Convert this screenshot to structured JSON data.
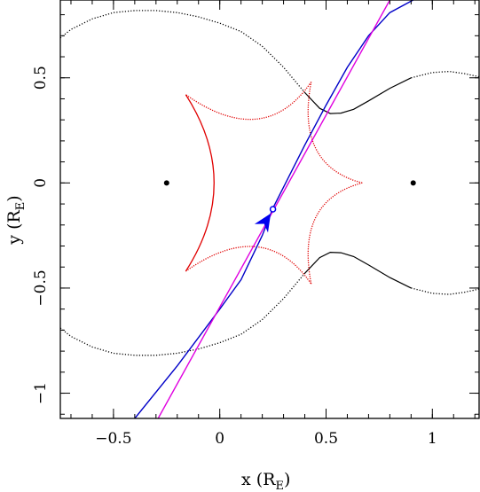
{
  "chart_data": {
    "type": "line",
    "xlabel": {
      "text": "x (R",
      "sub": "E",
      "close": ")"
    },
    "ylabel": {
      "text": "y (R",
      "sub": "E",
      "close": ")"
    },
    "xlim": [
      -0.75,
      1.22
    ],
    "ylim": [
      -1.12,
      0.87
    ],
    "x_ticks": [
      {
        "value": -0.5,
        "label": "−0.5"
      },
      {
        "value": 0,
        "label": "0"
      },
      {
        "value": 0.5,
        "label": "0.5"
      },
      {
        "value": 1,
        "label": "1"
      }
    ],
    "y_ticks": [
      {
        "value": -1,
        "label": "−1"
      },
      {
        "value": -0.5,
        "label": "−0.5"
      },
      {
        "value": 0,
        "label": "0"
      },
      {
        "value": 0.5,
        "label": "0.5"
      }
    ],
    "x_minor_step": 0.1,
    "y_minor_step": 0.1,
    "lenses": [
      {
        "x": -0.25,
        "y": 0.0
      },
      {
        "x": 0.91,
        "y": 0.0
      }
    ],
    "series": [
      {
        "color": "#000000",
        "style": "dotted-solid",
        "points_upper": [
          [
            -0.75,
            0.69
          ],
          [
            -0.7,
            0.73
          ],
          [
            -0.6,
            0.78
          ],
          [
            -0.5,
            0.81
          ],
          [
            -0.4,
            0.82
          ],
          [
            -0.3,
            0.82
          ],
          [
            -0.2,
            0.81
          ],
          [
            -0.1,
            0.79
          ],
          [
            0.0,
            0.76
          ],
          [
            0.1,
            0.72
          ],
          [
            0.2,
            0.65
          ],
          [
            0.3,
            0.55
          ],
          [
            0.4,
            0.43
          ],
          [
            0.47,
            0.355
          ],
          [
            0.52,
            0.33
          ],
          [
            0.57,
            0.332
          ],
          [
            0.63,
            0.35
          ],
          [
            0.7,
            0.39
          ],
          [
            0.8,
            0.45
          ],
          [
            0.9,
            0.5
          ],
          [
            1.0,
            0.525
          ],
          [
            1.08,
            0.53
          ],
          [
            1.15,
            0.52
          ],
          [
            1.22,
            0.505
          ]
        ]
      },
      {
        "color": "#e00000",
        "style": "dotted",
        "cusps": [
          [
            0.67,
            0.0
          ],
          [
            0.43,
            0.48
          ],
          [
            -0.16,
            0.42
          ],
          [
            -0.16,
            -0.42
          ],
          [
            0.43,
            -0.48
          ]
        ]
      },
      {
        "color": "#0000c8",
        "style": "solid",
        "points": [
          [
            -0.4,
            -1.12
          ],
          [
            -0.2,
            -0.87
          ],
          [
            0.0,
            -0.6
          ],
          [
            0.1,
            -0.46
          ],
          [
            0.2,
            -0.25
          ],
          [
            0.25,
            -0.12
          ],
          [
            0.3,
            -0.02
          ],
          [
            0.4,
            0.18
          ],
          [
            0.5,
            0.37
          ],
          [
            0.6,
            0.55
          ],
          [
            0.7,
            0.7
          ],
          [
            0.8,
            0.81
          ],
          [
            0.91,
            0.87
          ]
        ]
      },
      {
        "color": "#e000e0",
        "style": "solid",
        "points": [
          [
            -0.29,
            -1.12
          ],
          [
            0.8,
            0.87
          ]
        ]
      }
    ],
    "source_marker": {
      "x": 0.25,
      "y": -0.125,
      "color": "#0000ee"
    },
    "arrow": {
      "tip_x": 0.24,
      "tip_y": -0.145,
      "from_x": 0.18,
      "from_y": -0.24,
      "color": "#0000ee"
    }
  }
}
